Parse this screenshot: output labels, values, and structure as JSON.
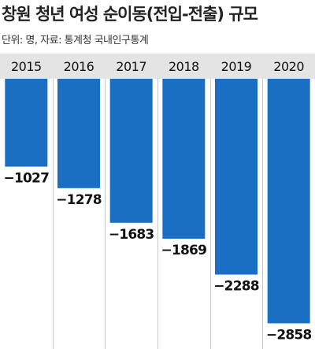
{
  "header": {
    "title": "창원 청년 여성 순이동(전입-전출) 규모",
    "subtitle": "단위: 명, 자료: 통계청 국내인구통계"
  },
  "colors": {
    "bar": "#1a6fc2",
    "axis_band": "#e4e4e4",
    "gridline": "#c8c8c8",
    "text": "#111111"
  },
  "chart_data": {
    "type": "bar",
    "categories": [
      "2015",
      "2016",
      "2017",
      "2018",
      "2019",
      "2020"
    ],
    "values": [
      -1027,
      -1278,
      -1683,
      -1869,
      -2288,
      -2858
    ],
    "value_labels": [
      "−1027",
      "−1278",
      "−1683",
      "−1869",
      "−2288",
      "−2858"
    ],
    "ylim": [
      -2900,
      0
    ],
    "grid": "vertical",
    "legend": "none"
  }
}
